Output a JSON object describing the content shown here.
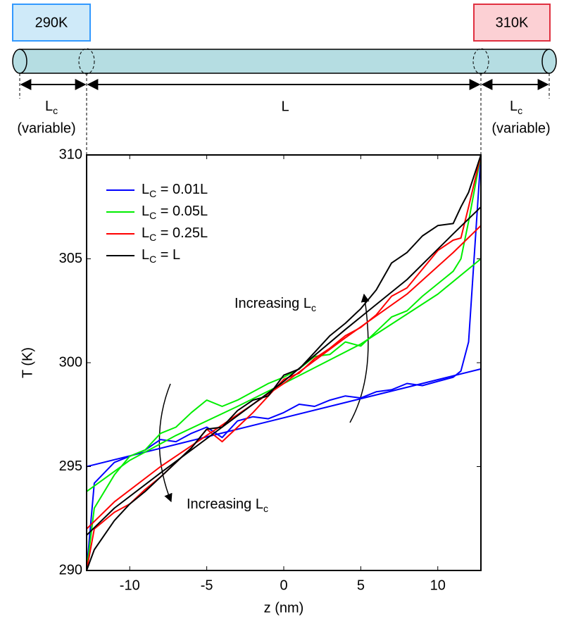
{
  "diagram": {
    "left_reservoir": "290K",
    "right_reservoir": "310K",
    "left_length": "Lc",
    "left_note": "(variable)",
    "middle_length": "L",
    "right_length": "Lc",
    "right_note": "(variable)"
  },
  "chart_data": {
    "type": "line",
    "x_label": "z (nm)",
    "y_label": "T (K)",
    "xlim": [
      -12.8,
      12.8
    ],
    "ylim": [
      290,
      310
    ],
    "xticks": [
      -10,
      -5,
      0,
      5,
      10
    ],
    "yticks": [
      290,
      295,
      300,
      305,
      310
    ],
    "legend": "upper left",
    "x": [
      -12.8,
      -12.3,
      -11,
      -10,
      -9,
      -8,
      -7,
      -6,
      -5,
      -4,
      -3,
      -2,
      -1,
      0,
      1,
      2,
      3,
      4,
      5,
      6,
      7,
      8,
      9,
      10,
      11,
      11.5,
      12,
      12.8
    ],
    "series": [
      {
        "name": "LC = 0.01L",
        "color": "#0000ff",
        "values": [
          290,
          294.2,
          295.2,
          295.5,
          295.8,
          296.3,
          296.2,
          296.6,
          296.9,
          296.4,
          297.2,
          297.4,
          297.3,
          297.6,
          298,
          297.9,
          298.2,
          298.4,
          298.3,
          298.6,
          298.7,
          299,
          298.9,
          299.1,
          299.3,
          299.6,
          301,
          310
        ],
        "fit": {
          "x": [
            -12.8,
            12.8
          ],
          "values": [
            295,
            299.7
          ]
        }
      },
      {
        "name": "LC = 0.05L",
        "color": "#00ee00",
        "values": [
          290,
          293,
          294.6,
          295.5,
          295.8,
          296.6,
          296.9,
          297.6,
          298.2,
          297.9,
          298.2,
          298.6,
          299,
          299.3,
          299.7,
          300.3,
          300.4,
          301,
          300.8,
          301.5,
          302.2,
          302.5,
          303.2,
          303.8,
          304.4,
          305,
          306.8,
          310
        ],
        "fit": {
          "x": [
            -12.8,
            -10,
            -7,
            -3,
            0,
            5,
            10,
            12.8
          ],
          "values": [
            293.8,
            295.3,
            296.5,
            297.9,
            299,
            300.9,
            303.3,
            305
          ]
        }
      },
      {
        "name": "LC = 0.25L",
        "color": "#ff0000",
        "values": [
          290,
          292,
          292.8,
          293.2,
          293.9,
          294.5,
          295.2,
          295.9,
          296.8,
          296.2,
          296.9,
          297.6,
          298.4,
          299.2,
          299.5,
          300.2,
          300.7,
          301.3,
          301.7,
          302.3,
          303.2,
          303.6,
          304.5,
          305.4,
          305.9,
          306,
          307.5,
          310
        ],
        "fit": {
          "x": [
            -12.8,
            -11,
            -8,
            -4,
            0,
            4,
            8,
            11,
            12.8
          ],
          "values": [
            292,
            293.3,
            295,
            297,
            299,
            301.2,
            303.3,
            305.3,
            306.6
          ]
        }
      },
      {
        "name": "LC = L",
        "color": "#000000",
        "values": [
          290,
          291,
          292.4,
          293.2,
          293.8,
          294.5,
          295.2,
          295.9,
          296.8,
          296.9,
          297.7,
          298.2,
          298.4,
          299.4,
          299.7,
          300.5,
          301.3,
          301.9,
          302.6,
          303.5,
          304.8,
          305.3,
          306.1,
          306.6,
          306.7,
          307.5,
          308.2,
          310
        ],
        "fit": {
          "x": [
            -12.8,
            -11,
            -8,
            -4,
            0,
            4,
            8,
            11,
            12.8
          ],
          "values": [
            291.7,
            293,
            294.7,
            296.9,
            299.1,
            301.6,
            304,
            306.2,
            307.5
          ]
        }
      }
    ],
    "annotations": [
      "Increasing Lc",
      "Increasing Lc"
    ]
  }
}
